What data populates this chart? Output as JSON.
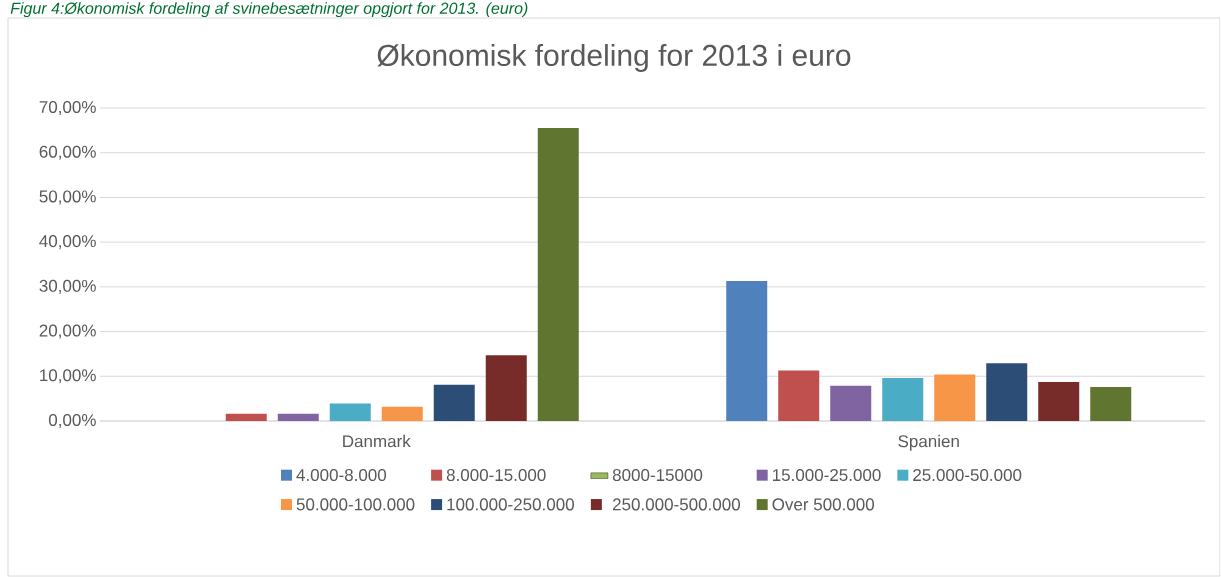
{
  "chart_data": {
    "type": "bar",
    "title": "Økonomisk fordeling for 2013 i euro",
    "annotations": [
      "Figur 4:Økonomisk fordeling af svinebesætninger opgjort for 2013. (euro)"
    ],
    "categories": [
      "Danmark",
      "Spanien"
    ],
    "series": [
      {
        "name": "4.000-8.000",
        "color": "#4f81bd",
        "values": [
          null,
          31.3
        ]
      },
      {
        "name": "8.000-15.000",
        "color": "#c0504d",
        "values": [
          1.6,
          11.3
        ]
      },
      {
        "name": "8000-15000",
        "color": "#9bbb59",
        "values": [
          null,
          null
        ]
      },
      {
        "name": "15.000-25.000",
        "color": "#8064a2",
        "values": [
          1.6,
          7.9
        ]
      },
      {
        "name": "25.000-50.000",
        "color": "#4bacc6",
        "values": [
          3.9,
          9.6
        ]
      },
      {
        "name": "50.000-100.000",
        "color": "#f79646",
        "values": [
          3.2,
          10.4
        ]
      },
      {
        "name": "100.000-250.000",
        "color": "#2c4d75",
        "values": [
          8.1,
          12.9
        ]
      },
      {
        "name": "250.000-500.000",
        "color": "#772c2a",
        "values": [
          14.7,
          8.7
        ]
      },
      {
        "name": "Over 500.000",
        "color": "#5f7530",
        "values": [
          65.5,
          7.6
        ]
      }
    ],
    "ylim": [
      0,
      70
    ],
    "yticks": [
      {
        "value": 0,
        "label": "0,00%"
      },
      {
        "value": 10,
        "label": "10,00%"
      },
      {
        "value": 20,
        "label": "20,00%"
      },
      {
        "value": 30,
        "label": "30,00%"
      },
      {
        "value": 40,
        "label": "40,00%"
      },
      {
        "value": 50,
        "label": "50,00%"
      },
      {
        "value": 60,
        "label": "60,00%"
      },
      {
        "value": 70,
        "label": "70,00%"
      }
    ],
    "grid": "y",
    "legend": "bottom"
  }
}
